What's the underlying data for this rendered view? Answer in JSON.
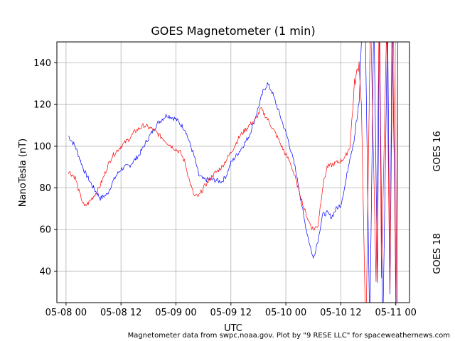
{
  "chart_data": {
    "type": "line",
    "title": "GOES Magnetometer (1 min)",
    "xlabel": "UTC",
    "ylabel": "NanoTesla (nT)",
    "credit": "Magnetometer data from swpc.noaa.gov. Plot by \"9 RESE LLC\" for spaceweathernews.com",
    "xlim": [
      "05-07 22:00",
      "05-11 03:00"
    ],
    "ylim": [
      25,
      150
    ],
    "x_ticks": [
      "05-08 00",
      "05-08 12",
      "05-09 00",
      "05-09 12",
      "05-10 00",
      "05-10 12",
      "05-11 00"
    ],
    "y_ticks": [
      40,
      60,
      80,
      100,
      120,
      140
    ],
    "grid": true,
    "series": [
      {
        "name": "GOES 16",
        "color": "#0000ff",
        "points": [
          [
            "05-08 00:30",
            105
          ],
          [
            "05-08 02:00",
            100
          ],
          [
            "05-08 04:00",
            88
          ],
          [
            "05-08 06:00",
            80
          ],
          [
            "05-08 07:30",
            75
          ],
          [
            "05-08 09:00",
            77
          ],
          [
            "05-08 10:00",
            82
          ],
          [
            "05-08 11:00",
            86
          ],
          [
            "05-08 12:00",
            89
          ],
          [
            "05-08 14:00",
            91
          ],
          [
            "05-08 16:00",
            96
          ],
          [
            "05-08 18:00",
            104
          ],
          [
            "05-08 20:00",
            111
          ],
          [
            "05-08 22:00",
            115
          ],
          [
            "05-09 00:00",
            113
          ],
          [
            "05-09 02:00",
            108
          ],
          [
            "05-09 04:00",
            95
          ],
          [
            "05-09 05:00",
            86
          ],
          [
            "05-09 06:00",
            84
          ],
          [
            "05-09 08:00",
            84
          ],
          [
            "05-09 10:00",
            83
          ],
          [
            "05-09 11:00",
            86
          ],
          [
            "05-09 12:00",
            92
          ],
          [
            "05-09 14:00",
            98
          ],
          [
            "05-09 16:00",
            105
          ],
          [
            "05-09 17:30",
            115
          ],
          [
            "05-09 19:00",
            126
          ],
          [
            "05-09 20:00",
            130
          ],
          [
            "05-09 21:00",
            126
          ],
          [
            "05-09 23:00",
            113
          ],
          [
            "05-10 00:30",
            103
          ],
          [
            "05-10 02:00",
            90
          ],
          [
            "05-10 03:00",
            78
          ],
          [
            "05-10 04:00",
            65
          ],
          [
            "05-10 05:00",
            55
          ],
          [
            "05-10 06:00",
            46
          ],
          [
            "05-10 07:00",
            55
          ],
          [
            "05-10 08:00",
            67
          ],
          [
            "05-10 09:00",
            68
          ],
          [
            "05-10 10:00",
            66
          ],
          [
            "05-10 11:00",
            70
          ],
          [
            "05-10 12:00",
            72
          ],
          [
            "05-10 13:00",
            82
          ],
          [
            "05-10 14:00",
            95
          ],
          [
            "05-10 15:00",
            105
          ],
          [
            "05-10 16:00",
            120
          ],
          [
            "05-10 16:30",
            150
          ]
        ]
      },
      {
        "name": "GOES 18",
        "color": "#ff0000",
        "points": [
          [
            "05-08 00:30",
            88
          ],
          [
            "05-08 02:00",
            85
          ],
          [
            "05-08 03:00",
            77
          ],
          [
            "05-08 04:00",
            71
          ],
          [
            "05-08 05:00",
            73
          ],
          [
            "05-08 06:00",
            76
          ],
          [
            "05-08 07:00",
            79
          ],
          [
            "05-08 08:00",
            84
          ],
          [
            "05-08 09:00",
            90
          ],
          [
            "05-08 10:00",
            95
          ],
          [
            "05-08 12:00",
            100
          ],
          [
            "05-08 14:00",
            104
          ],
          [
            "05-08 15:00",
            107
          ],
          [
            "05-08 17:00",
            110
          ],
          [
            "05-08 19:00",
            108
          ],
          [
            "05-08 21:00",
            104
          ],
          [
            "05-08 23:00",
            100
          ],
          [
            "05-09 01:00",
            97
          ],
          [
            "05-09 02:00",
            92
          ],
          [
            "05-09 03:00",
            83
          ],
          [
            "05-09 04:00",
            76
          ],
          [
            "05-09 05:00",
            76
          ],
          [
            "05-09 06:00",
            80
          ],
          [
            "05-09 08:00",
            86
          ],
          [
            "05-09 10:00",
            90
          ],
          [
            "05-09 12:00",
            97
          ],
          [
            "05-09 14:00",
            105
          ],
          [
            "05-09 16:00",
            110
          ],
          [
            "05-09 17:30",
            113
          ],
          [
            "05-09 18:30",
            118
          ],
          [
            "05-09 20:00",
            113
          ],
          [
            "05-09 22:00",
            105
          ],
          [
            "05-09 23:30",
            98
          ],
          [
            "05-10 01:00",
            92
          ],
          [
            "05-10 02:00",
            85
          ],
          [
            "05-10 03:00",
            78
          ],
          [
            "05-10 04:00",
            70
          ],
          [
            "05-10 05:00",
            64
          ],
          [
            "05-10 06:00",
            60
          ],
          [
            "05-10 07:00",
            62
          ],
          [
            "05-10 08:00",
            80
          ],
          [
            "05-10 09:00",
            90
          ],
          [
            "05-10 10:00",
            91
          ],
          [
            "05-10 11:00",
            92
          ],
          [
            "05-10 12:00",
            93
          ],
          [
            "05-10 13:00",
            95
          ],
          [
            "05-10 14:00",
            100
          ],
          [
            "05-10 15:00",
            130
          ],
          [
            "05-10 16:00",
            140
          ],
          [
            "05-10 16:30",
            120
          ]
        ]
      }
    ]
  }
}
